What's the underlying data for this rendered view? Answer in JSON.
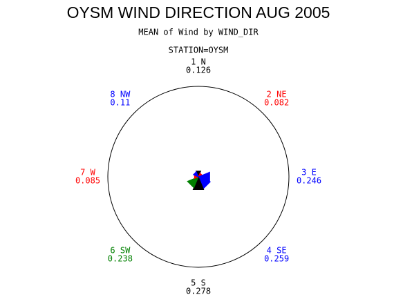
{
  "chart_data": {
    "type": "star",
    "title": "OYSM WIND DIRECTION AUG 2005",
    "subtitle": "MEAN of Wind by WIND_DIR",
    "group_label": "STATION=OYSM",
    "categories": [
      "1 N",
      "2 NE",
      "3 E",
      "4 SE",
      "5 S",
      "6 SW",
      "7 W",
      "8 NW"
    ],
    "values": [
      0.126,
      0.082,
      0.246,
      0.259,
      0.278,
      0.238,
      0.085,
      0.11
    ],
    "colors": [
      "#000000",
      "#ff0000",
      "#0000ff",
      "#0000ff",
      "#000000",
      "#008000",
      "#ff0000",
      "#0000ff"
    ]
  }
}
